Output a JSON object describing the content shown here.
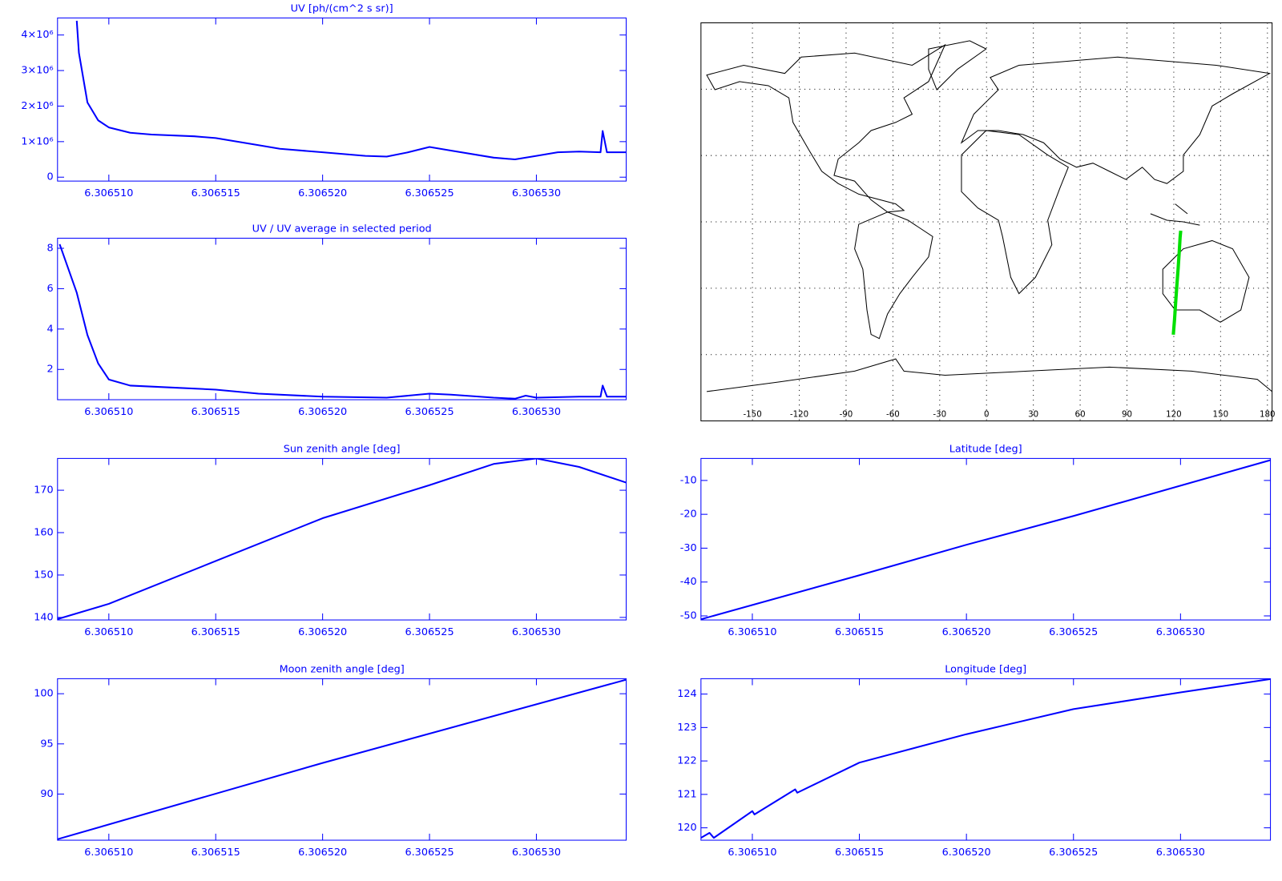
{
  "chart_data": [
    {
      "type": "line",
      "title": "UV [ph/(cm^2 s sr)]",
      "color": "#0000ff",
      "xlim": [
        6.3065076,
        6.3065342
      ],
      "ylim": [
        -110000,
        4480000
      ],
      "xticks": [
        {
          "value": 6.30651,
          "label": "6.306510"
        },
        {
          "value": 6.306515,
          "label": "6.306515"
        },
        {
          "value": 6.30652,
          "label": "6.306520"
        },
        {
          "value": 6.306525,
          "label": "6.306525"
        },
        {
          "value": 6.30653,
          "label": "6.306530"
        }
      ],
      "yticks": [
        0,
        {
          "value": 1000000,
          "label": "1×10⁶"
        },
        {
          "value": 2000000,
          "label": "2×10⁶"
        },
        {
          "value": 3000000,
          "label": "3×10⁶"
        },
        {
          "value": 4000000,
          "label": "4×10⁶"
        }
      ],
      "x": [
        6.3065085,
        6.3065086,
        6.306509,
        6.3065095,
        6.30651,
        6.306511,
        6.306512,
        6.306514,
        6.306515,
        6.306517,
        6.306518,
        6.30652,
        6.306522,
        6.306523,
        6.306524,
        6.306525,
        6.306526,
        6.306528,
        6.306529,
        6.30653,
        6.306531,
        6.306532,
        6.306533,
        6.3065331,
        6.3065333,
        6.3065342
      ],
      "values": [
        4400000,
        3500000,
        2100000,
        1600000,
        1400000,
        1250000,
        1200000,
        1150000,
        1100000,
        900000,
        800000,
        700000,
        600000,
        580000,
        700000,
        850000,
        750000,
        550000,
        500000,
        600000,
        700000,
        720000,
        700000,
        1300000,
        700000,
        700000
      ]
    },
    {
      "type": "line",
      "title": "UV / UV average in selected period",
      "color": "#0000ff",
      "xlim": [
        6.3065076,
        6.3065342
      ],
      "ylim": [
        0.5,
        8.5
      ],
      "xticks": [
        {
          "value": 6.30651,
          "label": "6.306510"
        },
        {
          "value": 6.306515,
          "label": "6.306515"
        },
        {
          "value": 6.30652,
          "label": "6.306520"
        },
        {
          "value": 6.306525,
          "label": "6.306525"
        },
        {
          "value": 6.30653,
          "label": "6.306530"
        }
      ],
      "yticks": [
        2,
        4,
        6,
        8
      ],
      "x": [
        6.3065077,
        6.3065085,
        6.306509,
        6.3065095,
        6.30651,
        6.306511,
        6.306513,
        6.306515,
        6.306517,
        6.30652,
        6.306523,
        6.306525,
        6.306526,
        6.306528,
        6.306529,
        6.3065295,
        6.30653,
        6.306532,
        6.306533,
        6.3065331,
        6.3065333,
        6.3065342
      ],
      "values": [
        8.2,
        5.8,
        3.7,
        2.3,
        1.5,
        1.2,
        1.1,
        1.0,
        0.8,
        0.65,
        0.6,
        0.8,
        0.75,
        0.6,
        0.55,
        0.7,
        0.6,
        0.65,
        0.65,
        1.2,
        0.65,
        0.65
      ]
    },
    {
      "type": "map",
      "color": "#00e000",
      "xlim": [
        -183,
        183
      ],
      "ylim": [
        -90,
        90
      ],
      "xticks": [
        -150,
        -120,
        -90,
        -60,
        -30,
        0,
        30,
        60,
        90,
        120,
        150,
        180
      ],
      "ygrid": [
        -60,
        -30,
        0,
        30,
        60
      ],
      "x": [
        119.7,
        120.5,
        121.15,
        121.95,
        122.8,
        123.55,
        124.05,
        124.45
      ],
      "values": [
        -51,
        -44,
        -37,
        -29,
        -21,
        -13,
        -7,
        -4
      ]
    },
    {
      "type": "line",
      "title": "Sun zenith angle [deg]",
      "color": "#0000ff",
      "xlim": [
        6.3065076,
        6.3065342
      ],
      "ylim": [
        139.4,
        177.5
      ],
      "xticks": [
        {
          "value": 6.30651,
          "label": "6.306510"
        },
        {
          "value": 6.306515,
          "label": "6.306515"
        },
        {
          "value": 6.30652,
          "label": "6.306520"
        },
        {
          "value": 6.306525,
          "label": "6.306525"
        },
        {
          "value": 6.30653,
          "label": "6.306530"
        }
      ],
      "yticks": [
        140,
        150,
        160,
        170
      ],
      "x": [
        6.3065076,
        6.30651,
        6.306515,
        6.30652,
        6.306525,
        6.306528,
        6.30653,
        6.306532,
        6.3065342
      ],
      "values": [
        139.6,
        143.2,
        153.3,
        163.4,
        171.2,
        176.2,
        177.5,
        175.5,
        171.8
      ]
    },
    {
      "type": "line",
      "title": "Latitude [deg]",
      "color": "#0000ff",
      "xlim": [
        6.3065076,
        6.3065342
      ],
      "ylim": [
        -51.2,
        -3.5
      ],
      "xticks": [
        {
          "value": 6.30651,
          "label": "6.306510"
        },
        {
          "value": 6.306515,
          "label": "6.306515"
        },
        {
          "value": 6.30652,
          "label": "6.306520"
        },
        {
          "value": 6.306525,
          "label": "6.306525"
        },
        {
          "value": 6.30653,
          "label": "6.306530"
        }
      ],
      "yticks": [
        -50,
        -40,
        -30,
        -20,
        -10
      ],
      "x": [
        6.3065076,
        6.306515,
        6.30652,
        6.306525,
        6.3065342
      ],
      "values": [
        -51,
        -38,
        -29,
        -20.5,
        -4
      ]
    },
    {
      "type": "line",
      "title": "Moon zenith angle [deg]",
      "color": "#0000ff",
      "xlim": [
        6.3065076,
        6.3065342
      ],
      "ylim": [
        85.4,
        101.5
      ],
      "xticks": [
        {
          "value": 6.30651,
          "label": "6.306510"
        },
        {
          "value": 6.306515,
          "label": "6.306515"
        },
        {
          "value": 6.30652,
          "label": "6.306520"
        },
        {
          "value": 6.306525,
          "label": "6.306525"
        },
        {
          "value": 6.30653,
          "label": "6.306530"
        }
      ],
      "yticks": [
        90,
        95,
        100
      ],
      "x": [
        6.3065076,
        6.30652,
        6.3065342
      ],
      "values": [
        85.5,
        93.1,
        101.4
      ]
    },
    {
      "type": "line",
      "title": "Longitude [deg]",
      "color": "#0000ff",
      "xlim": [
        6.3065076,
        6.3065342
      ],
      "ylim": [
        119.63,
        124.46
      ],
      "xticks": [
        {
          "value": 6.30651,
          "label": "6.306510"
        },
        {
          "value": 6.306515,
          "label": "6.306515"
        },
        {
          "value": 6.30652,
          "label": "6.306520"
        },
        {
          "value": 6.306525,
          "label": "6.306525"
        },
        {
          "value": 6.30653,
          "label": "6.306530"
        }
      ],
      "yticks": [
        120,
        121,
        122,
        123,
        124
      ],
      "x": [
        6.3065076,
        6.306508,
        6.3065082,
        6.30651,
        6.3065101,
        6.306512,
        6.3065121,
        6.306515,
        6.30652,
        6.306525,
        6.30653,
        6.3065342
      ],
      "values": [
        119.7,
        119.85,
        119.7,
        120.5,
        120.4,
        121.15,
        121.05,
        121.95,
        122.8,
        123.55,
        124.05,
        124.45
      ]
    }
  ]
}
